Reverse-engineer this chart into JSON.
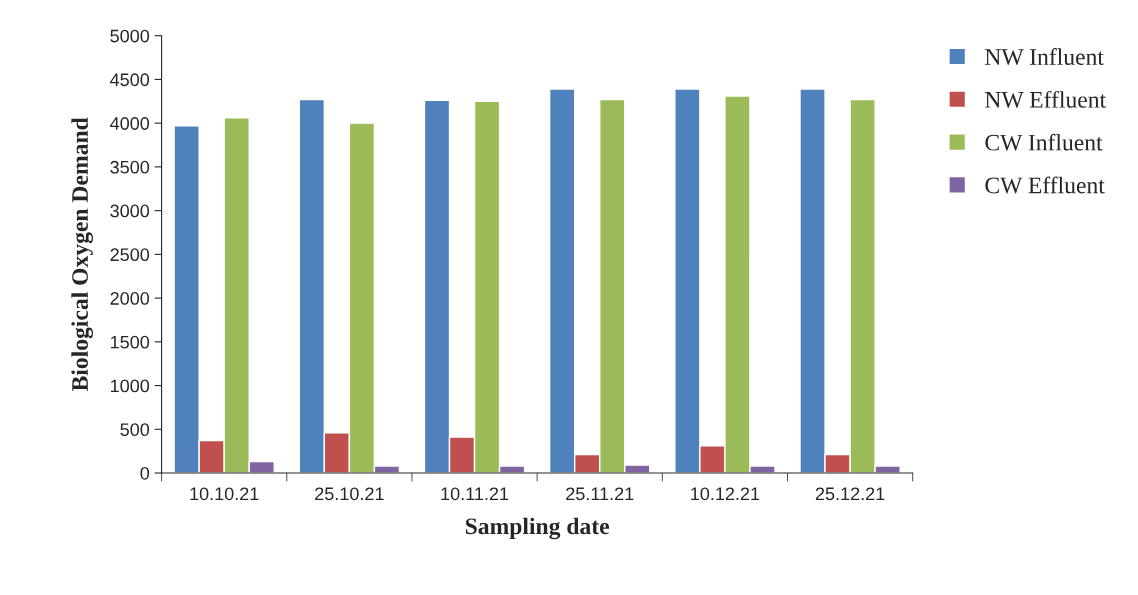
{
  "chart_data": {
    "type": "bar",
    "xlabel": "Sampling date",
    "ylabel": "Biological Oxygen Demand",
    "categories": [
      "10.10.21",
      "25.10.21",
      "10.11.21",
      "25.11.21",
      "10.12.21",
      "25.12.21"
    ],
    "series": [
      {
        "name": "NW Influent",
        "color": "#4f81bd",
        "values": [
          3970,
          4270,
          4260,
          4390,
          4390,
          4390
        ]
      },
      {
        "name": "NW Effluent",
        "color": "#c0504d",
        "values": [
          370,
          460,
          410,
          210,
          310,
          210
        ]
      },
      {
        "name": "CW Influent",
        "color": "#9bbb59",
        "values": [
          4060,
          4000,
          4250,
          4270,
          4310,
          4270
        ]
      },
      {
        "name": "CW Effluent",
        "color": "#8064a2",
        "values": [
          130,
          80,
          80,
          90,
          80,
          80
        ]
      }
    ],
    "ylim": [
      0,
      5000
    ],
    "yticks": [
      0,
      500,
      1000,
      1500,
      2000,
      2500,
      3000,
      3500,
      4000,
      4500,
      5000
    ],
    "grid": false,
    "legend": "right"
  }
}
